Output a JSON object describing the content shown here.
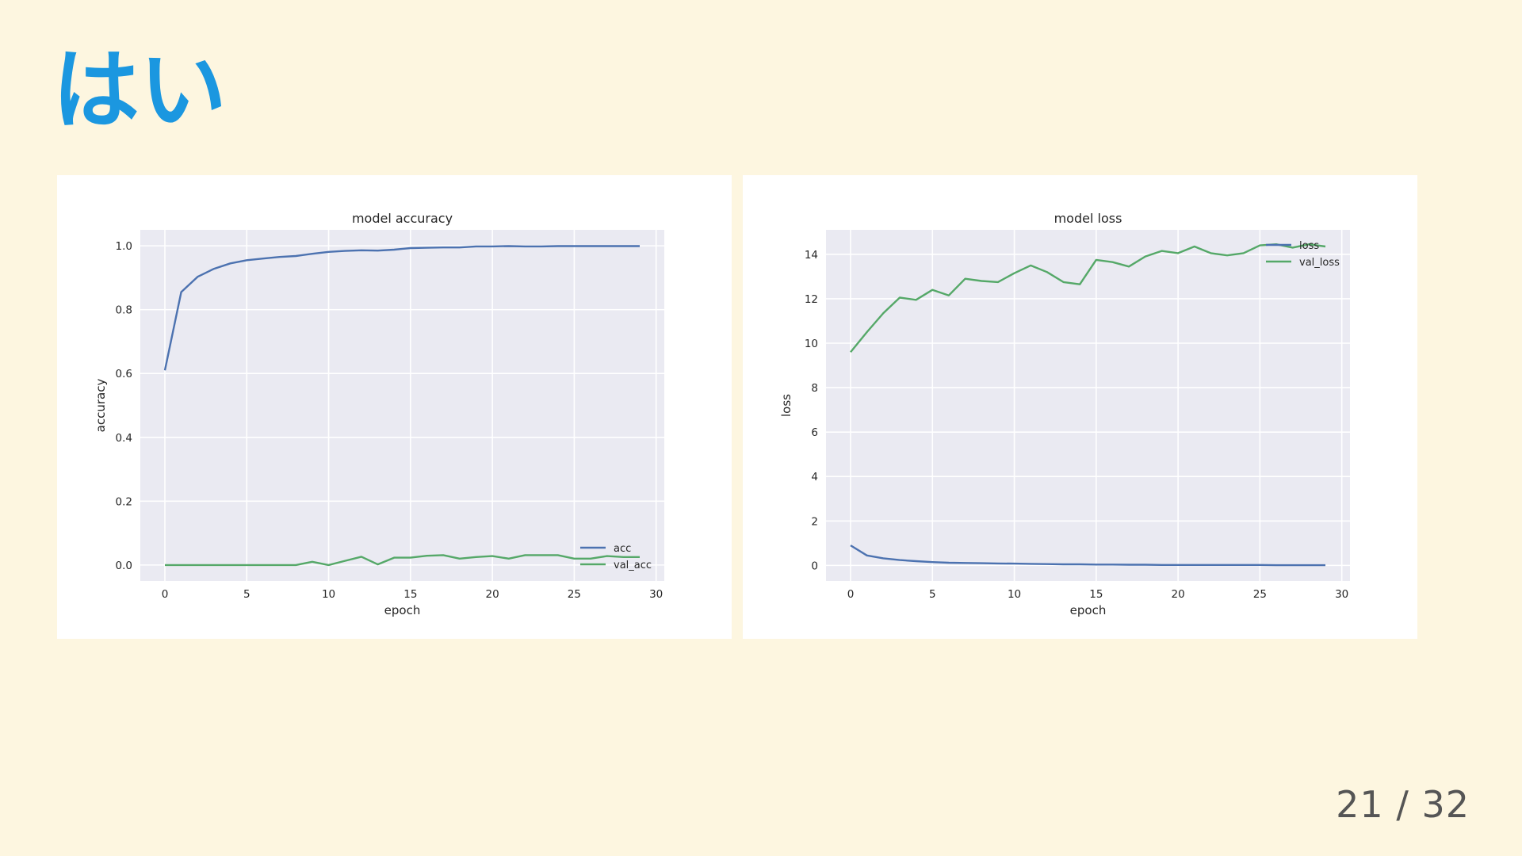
{
  "slide": {
    "title": "はい",
    "page_current": "21",
    "page_separator": "/",
    "page_total": "32"
  },
  "chart_data": [
    {
      "type": "line",
      "title": "model accuracy",
      "xlabel": "epoch",
      "ylabel": "accuracy",
      "xlim": [
        -1.5,
        30.5
      ],
      "ylim": [
        -0.05,
        1.05
      ],
      "xticks": [
        0,
        5,
        10,
        15,
        20,
        25,
        30
      ],
      "yticks": [
        0.0,
        0.2,
        0.4,
        0.6,
        0.8,
        1.0
      ],
      "ytick_decimals": 1,
      "grid": true,
      "legend_position": "lower-right",
      "x": [
        0,
        1,
        2,
        3,
        4,
        5,
        6,
        7,
        8,
        9,
        10,
        11,
        12,
        13,
        14,
        15,
        16,
        17,
        18,
        19,
        20,
        21,
        22,
        23,
        24,
        25,
        26,
        27,
        28,
        29
      ],
      "series": [
        {
          "name": "acc",
          "color": "#4c72b0",
          "values": [
            0.61,
            0.855,
            0.903,
            0.928,
            0.945,
            0.955,
            0.96,
            0.965,
            0.968,
            0.975,
            0.981,
            0.984,
            0.986,
            0.985,
            0.988,
            0.993,
            0.994,
            0.995,
            0.995,
            0.998,
            0.998,
            0.999,
            0.998,
            0.998,
            0.999,
            0.999,
            0.999,
            0.999,
            0.999,
            0.999
          ]
        },
        {
          "name": "val_acc",
          "color": "#55a868",
          "values": [
            0,
            0,
            0,
            0,
            0,
            0,
            0,
            0,
            0,
            0.01,
            0,
            0.013,
            0.026,
            0.002,
            0.023,
            0.023,
            0.029,
            0.031,
            0.02,
            0.025,
            0.028,
            0.02,
            0.031,
            0.031,
            0.031,
            0.02,
            0.02,
            0.028,
            0.025,
            0.025
          ]
        }
      ]
    },
    {
      "type": "line",
      "title": "model loss",
      "xlabel": "epoch",
      "ylabel": "loss",
      "xlim": [
        -1.5,
        30.5
      ],
      "ylim": [
        -0.7,
        15.1
      ],
      "xticks": [
        0,
        5,
        10,
        15,
        20,
        25,
        30
      ],
      "yticks": [
        0,
        2,
        4,
        6,
        8,
        10,
        12,
        14
      ],
      "ytick_decimals": 0,
      "grid": true,
      "legend_position": "upper-right",
      "x": [
        0,
        1,
        2,
        3,
        4,
        5,
        6,
        7,
        8,
        9,
        10,
        11,
        12,
        13,
        14,
        15,
        16,
        17,
        18,
        19,
        20,
        21,
        22,
        23,
        24,
        25,
        26,
        27,
        28,
        29
      ],
      "series": [
        {
          "name": "loss",
          "color": "#4c72b0",
          "values": [
            0.9,
            0.45,
            0.32,
            0.24,
            0.19,
            0.15,
            0.12,
            0.11,
            0.1,
            0.09,
            0.08,
            0.07,
            0.06,
            0.05,
            0.05,
            0.04,
            0.04,
            0.03,
            0.03,
            0.02,
            0.02,
            0.02,
            0.02,
            0.02,
            0.02,
            0.02,
            0.01,
            0.01,
            0.01,
            0.01
          ]
        },
        {
          "name": "val_loss",
          "color": "#55a868",
          "values": [
            9.6,
            10.5,
            11.35,
            12.05,
            11.95,
            12.4,
            12.15,
            12.9,
            12.8,
            12.75,
            13.15,
            13.5,
            13.2,
            12.75,
            12.65,
            13.75,
            13.65,
            13.45,
            13.9,
            14.15,
            14.05,
            14.35,
            14.05,
            13.95,
            14.05,
            14.4,
            14.45,
            14.3,
            14.45,
            14.35
          ]
        }
      ]
    }
  ]
}
